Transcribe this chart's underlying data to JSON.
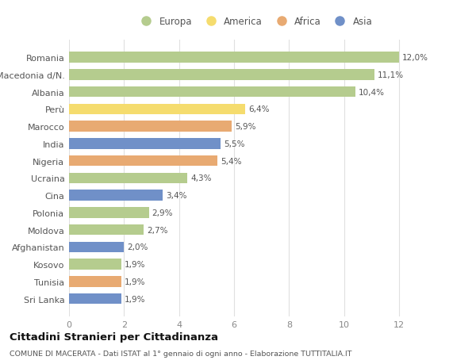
{
  "categories": [
    "Romania",
    "Macedonia d/N.",
    "Albania",
    "Perù",
    "Marocco",
    "India",
    "Nigeria",
    "Ucraina",
    "Cina",
    "Polonia",
    "Moldova",
    "Afghanistan",
    "Kosovo",
    "Tunisia",
    "Sri Lanka"
  ],
  "values": [
    12.0,
    11.1,
    10.4,
    6.4,
    5.9,
    5.5,
    5.4,
    4.3,
    3.4,
    2.9,
    2.7,
    2.0,
    1.9,
    1.9,
    1.9
  ],
  "labels": [
    "12,0%",
    "11,1%",
    "10,4%",
    "6,4%",
    "5,9%",
    "5,5%",
    "5,4%",
    "4,3%",
    "3,4%",
    "2,9%",
    "2,7%",
    "2,0%",
    "1,9%",
    "1,9%",
    "1,9%"
  ],
  "continents": [
    "Europa",
    "Europa",
    "Europa",
    "America",
    "Africa",
    "Asia",
    "Africa",
    "Europa",
    "Asia",
    "Europa",
    "Europa",
    "Asia",
    "Europa",
    "Africa",
    "Asia"
  ],
  "continent_colors": {
    "Europa": "#b5cc8e",
    "America": "#f5dc6e",
    "Africa": "#e8aa72",
    "Asia": "#7090c8"
  },
  "legend_order": [
    "Europa",
    "America",
    "Africa",
    "Asia"
  ],
  "bg_color": "#ffffff",
  "grid_color": "#e0e0e0",
  "title": "Cittadini Stranieri per Cittadinanza",
  "subtitle": "COMUNE DI MACERATA - Dati ISTAT al 1° gennaio di ogni anno - Elaborazione TUTTITALIA.IT",
  "xlim": [
    0,
    13.5
  ],
  "xticks": [
    0,
    2,
    4,
    6,
    8,
    10,
    12
  ]
}
